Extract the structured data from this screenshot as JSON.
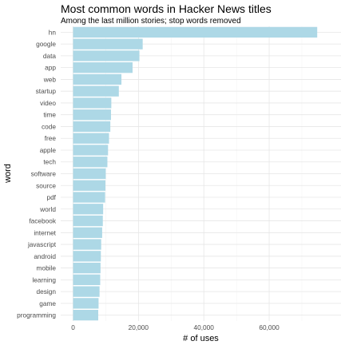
{
  "chart_data": {
    "type": "bar",
    "orientation": "horizontal",
    "title": "Most common words in Hacker News titles",
    "subtitle": "Among the last million stories; stop words removed",
    "xlabel": "# of uses",
    "ylabel": "word",
    "xlim": [
      0,
      75000
    ],
    "xticks": [
      0,
      20000,
      40000,
      60000
    ],
    "xtick_labels": [
      "0",
      "20,000",
      "40,000",
      "60,000"
    ],
    "grid": true,
    "legend": "none",
    "bar_color": "#add8e6",
    "categories": [
      "hn",
      "google",
      "data",
      "app",
      "web",
      "startup",
      "video",
      "time",
      "code",
      "free",
      "apple",
      "tech",
      "software",
      "source",
      "pdf",
      "world",
      "facebook",
      "internet",
      "javascript",
      "android",
      "mobile",
      "learning",
      "design",
      "game",
      "programming"
    ],
    "values": [
      74700,
      21300,
      20300,
      18200,
      14800,
      14000,
      11700,
      11600,
      11400,
      11000,
      10700,
      10500,
      10000,
      9900,
      9800,
      9200,
      9100,
      8900,
      8600,
      8500,
      8400,
      8300,
      8100,
      7800,
      7700
    ]
  }
}
